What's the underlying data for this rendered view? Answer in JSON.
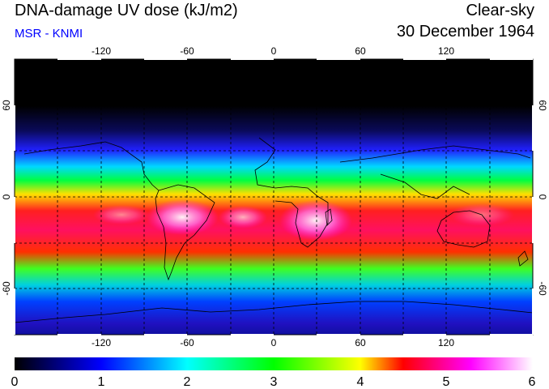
{
  "header": {
    "title": "DNA-damage UV dose (kJ/m2)",
    "source": "MSR - KNMI",
    "condition": "Clear-sky",
    "date": "30 December 1964"
  },
  "map": {
    "projection": "equirectangular",
    "lon_range": [
      -180,
      180
    ],
    "lat_range": [
      -90,
      90
    ],
    "lon_ticks": [
      "-120",
      "-60",
      "0",
      "60",
      "120"
    ],
    "lat_ticks": [
      "60",
      "0",
      "-60"
    ],
    "grid": "dashed every 30 degrees"
  },
  "colorbar": {
    "min": 0,
    "max": 6,
    "labels": [
      "0",
      "1",
      "2",
      "3",
      "4",
      "5",
      "6"
    ],
    "colors": [
      "#000000",
      "#0000ff",
      "#00ffff",
      "#00ff00",
      "#ffff00",
      "#ff0000",
      "#ff00ff",
      "#ffffff"
    ]
  }
}
